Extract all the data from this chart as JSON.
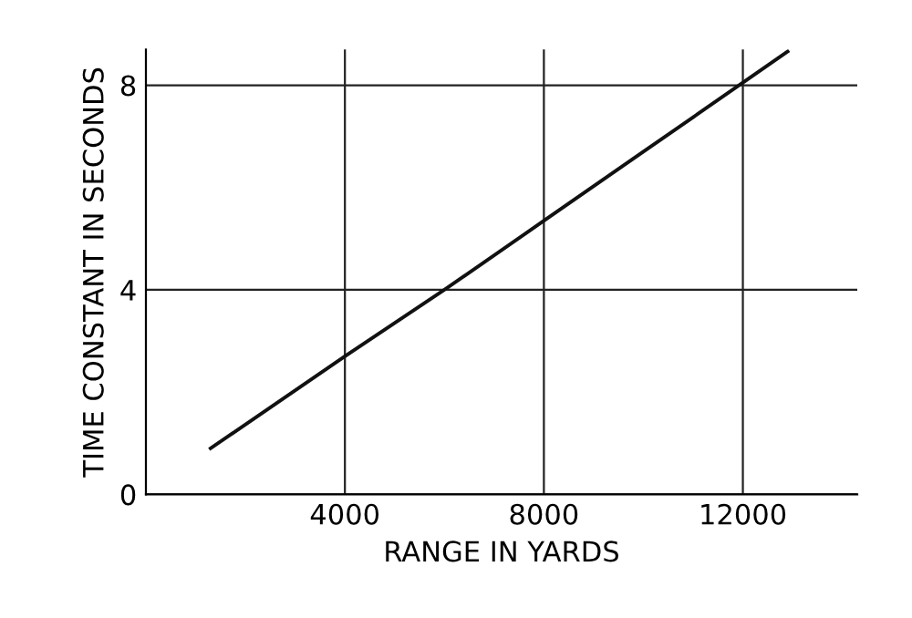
{
  "chart_data": {
    "type": "line",
    "xlabel": "RANGE IN YARDS",
    "ylabel": "TIME CONSTANT IN SECONDS",
    "x": [
      1300,
      4000,
      6000,
      8000,
      10000,
      12000,
      12900
    ],
    "series": [
      {
        "color": "#111111",
        "values": [
          0.9,
          2.7,
          4.0,
          5.35,
          6.7,
          8.05,
          8.66
        ]
      }
    ],
    "xlim": [
      0,
      14300
    ],
    "ylim": [
      0,
      8.7
    ],
    "xticks": [
      4000,
      8000,
      12000
    ],
    "yticks": [
      0,
      4,
      8
    ],
    "grid": true,
    "legend": false,
    "marker": "none",
    "line_style": "solid"
  }
}
